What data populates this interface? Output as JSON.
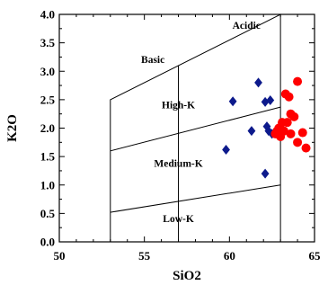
{
  "chart_data": {
    "type": "scatter",
    "title": "",
    "xlabel": "SiO2",
    "ylabel": "K2O",
    "xlim": [
      50,
      65
    ],
    "ylim": [
      0.0,
      4.0
    ],
    "x_ticks": [
      "50",
      "55",
      "60",
      "65"
    ],
    "y_ticks": [
      "0.0",
      "0.5",
      "1.0",
      "1.5",
      "2.0",
      "2.5",
      "3.0",
      "3.5",
      "4.0"
    ],
    "grid": false,
    "legend": "none",
    "boundary_lines": [
      {
        "points": [
          [
            53,
            0.0
          ],
          [
            53,
            2.5
          ],
          [
            63,
            4.0
          ],
          [
            63,
            0.0
          ]
        ]
      },
      {
        "points": [
          [
            57,
            0.0
          ],
          [
            57,
            3.1
          ]
        ]
      },
      {
        "points": [
          [
            53,
            1.6
          ],
          [
            63,
            2.37
          ]
        ]
      },
      {
        "points": [
          [
            53,
            0.52
          ],
          [
            63,
            1.0
          ]
        ]
      }
    ],
    "regions": [
      {
        "label": "Acidic",
        "x": 61.0,
        "y": 3.75
      },
      {
        "label": "Basic",
        "x": 55.5,
        "y": 3.15
      },
      {
        "label": "High-K",
        "x": 57.0,
        "y": 2.35
      },
      {
        "label": "Medium-K",
        "x": 57.0,
        "y": 1.32
      },
      {
        "label": "Low-K",
        "x": 57.0,
        "y": 0.35
      }
    ],
    "series": [
      {
        "marker": "diamond",
        "color": "#0d1a8c",
        "points": [
          [
            59.8,
            1.62
          ],
          [
            60.2,
            2.47
          ],
          [
            61.3,
            1.95
          ],
          [
            61.7,
            2.8
          ],
          [
            62.1,
            2.46
          ],
          [
            62.1,
            1.2
          ],
          [
            62.2,
            2.03
          ],
          [
            62.3,
            1.95
          ],
          [
            62.4,
            2.49
          ],
          [
            62.5,
            1.9
          ]
        ]
      },
      {
        "marker": "circle",
        "color": "#ff0000",
        "points": [
          [
            62.7,
            1.9
          ],
          [
            62.8,
            1.95
          ],
          [
            62.9,
            2.0
          ],
          [
            63.0,
            1.85
          ],
          [
            63.1,
            2.1
          ],
          [
            63.2,
            1.95
          ],
          [
            63.3,
            2.6
          ],
          [
            63.4,
            2.1
          ],
          [
            63.5,
            2.55
          ],
          [
            63.6,
            1.9
          ],
          [
            63.6,
            2.25
          ],
          [
            63.8,
            2.2
          ],
          [
            64.0,
            2.82
          ],
          [
            64.0,
            1.75
          ],
          [
            64.3,
            1.92
          ],
          [
            64.5,
            1.65
          ]
        ]
      }
    ]
  }
}
